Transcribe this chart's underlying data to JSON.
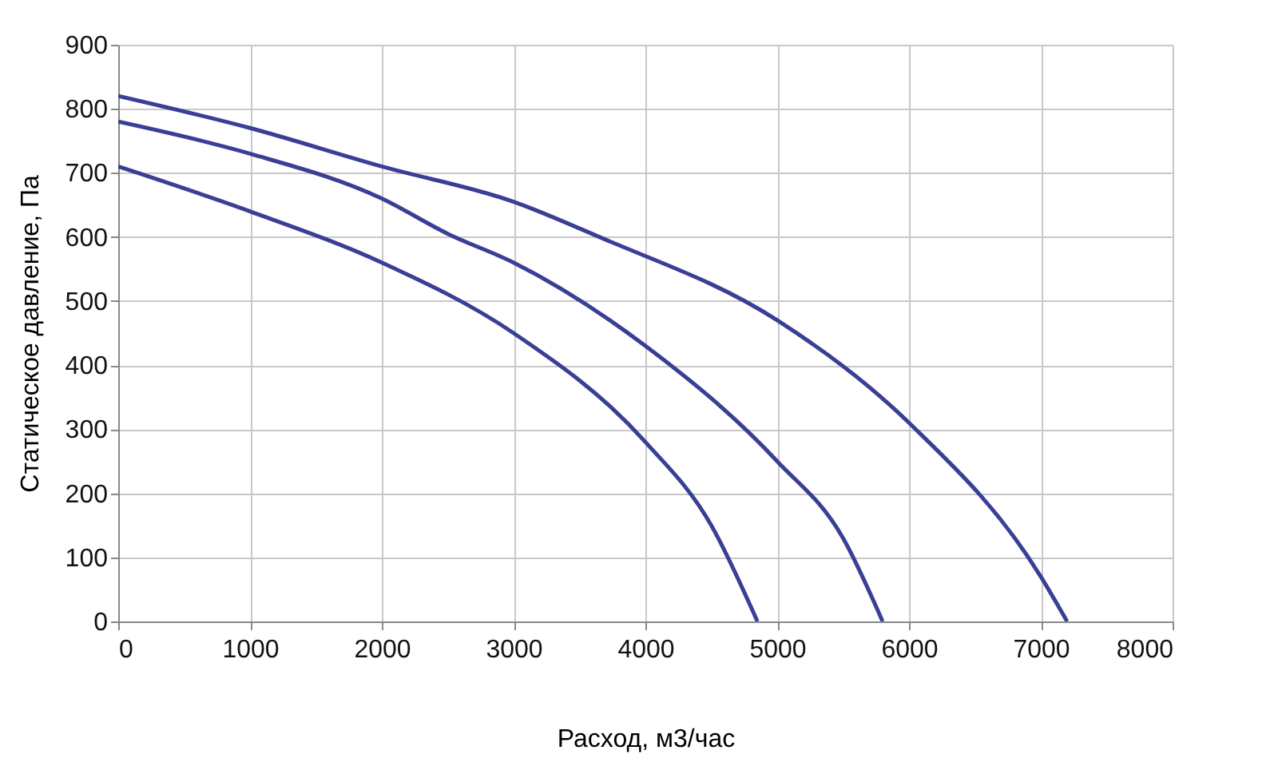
{
  "chart_data": {
    "type": "line",
    "xlabel": "Расход, м3/час",
    "ylabel": "Статическое давление, Па",
    "xlim": [
      0,
      8000
    ],
    "xticks": [
      0,
      1000,
      2000,
      3000,
      4000,
      5000,
      6000,
      7000,
      8000
    ],
    "ylim": [
      0,
      900
    ],
    "yticks": [
      0,
      100,
      200,
      300,
      400,
      500,
      600,
      700,
      800,
      900
    ],
    "grid": true,
    "line_style": "solid",
    "series": [
      {
        "color": "#3a3f96",
        "x": [
          0,
          1000,
          2000,
          3000,
          4000,
          4500,
          4850
        ],
        "values": [
          710,
          640,
          560,
          450,
          280,
          150,
          0
        ]
      },
      {
        "color": "#3a3f96",
        "x": [
          0,
          1000,
          2000,
          2500,
          3000,
          4000,
          5000,
          5500,
          5800
        ],
        "values": [
          780,
          730,
          660,
          605,
          560,
          430,
          250,
          130,
          0
        ]
      },
      {
        "color": "#3a3f96",
        "x": [
          0,
          1000,
          2000,
          3000,
          3650,
          5000,
          6000,
          7000,
          7200
        ],
        "values": [
          820,
          770,
          710,
          655,
          600,
          470,
          310,
          70,
          0
        ]
      }
    ]
  }
}
